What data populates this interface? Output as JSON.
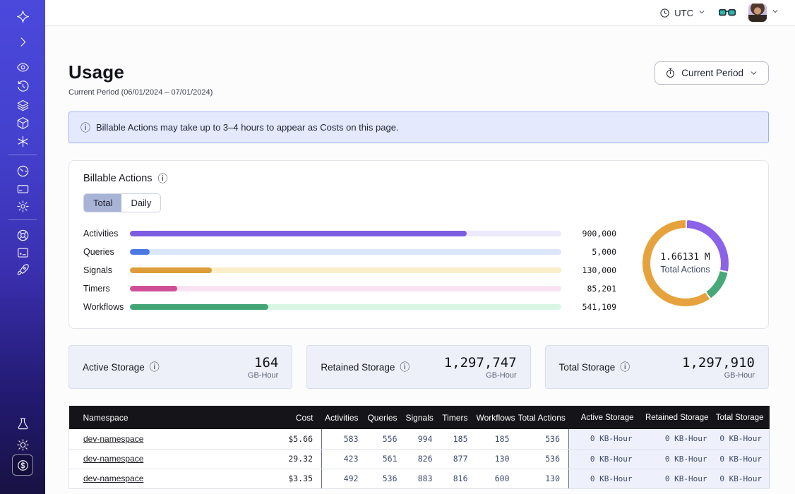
{
  "topbar": {
    "timezone_label": "UTC"
  },
  "icons": {
    "info_glyph": "ⓘ"
  },
  "sidebar": {
    "icons": [
      "temporal-logo",
      "chevron-right-icon",
      "eye-icon",
      "history-clock-icon",
      "layers-icon",
      "cube-icon",
      "asterisk-icon",
      "gauge-icon",
      "credit-card-icon",
      "gear-icon",
      "lifebuoy-icon",
      "book-icon",
      "rocket-icon",
      "flask-icon",
      "sun-icon",
      "dollar-coin-icon"
    ]
  },
  "page": {
    "title": "Usage",
    "subtitle": "Current Period (06/01/2024 – 07/01/2024)",
    "period_button_label": "Current Period"
  },
  "banner": {
    "text": "Billable Actions may take up to 3–4 hours to appear as Costs on this page."
  },
  "billable": {
    "title": "Billable Actions",
    "tabs": [
      {
        "label": "Total",
        "active": true
      },
      {
        "label": "Daily",
        "active": false
      }
    ],
    "chart_data": [
      {
        "type": "bar",
        "orientation": "horizontal",
        "title": "Billable Actions",
        "categories": [
          "Activities",
          "Queries",
          "Signals",
          "Timers",
          "Workflows"
        ],
        "values": [
          900000,
          5000,
          130000,
          85201,
          541109
        ],
        "value_labels": [
          "900,000",
          "5,000",
          "130,000",
          "85,201",
          "541,109"
        ],
        "bar_colors": [
          "#7c5ce0",
          "#4b79e4",
          "#dd9d38",
          "#cf4f97",
          "#43a476"
        ],
        "track_colors": [
          "#ece9fb",
          "#dbe6fa",
          "#faeecb",
          "#f9e3f3",
          "#d9f6e5"
        ],
        "display_fill_pct": [
          78,
          4.6,
          19,
          11,
          32
        ],
        "xlim": [
          0,
          900000
        ],
        "grid": false,
        "legend": "none"
      },
      {
        "type": "pie",
        "subtype": "donut",
        "center_value": "1.66131 M",
        "center_label": "Total Actions",
        "segments": [
          {
            "name": "activities",
            "color": "#8a63e8",
            "pct": 28
          },
          {
            "name": "workflows",
            "color": "#47a878",
            "pct": 12
          },
          {
            "name": "signals",
            "color": "#e6a23c",
            "pct": 60
          }
        ]
      }
    ]
  },
  "storage_cards": [
    {
      "label": "Active Storage",
      "value": "164",
      "unit": "GB-Hour"
    },
    {
      "label": "Retained Storage",
      "value": "1,297,747",
      "unit": "GB-Hour"
    },
    {
      "label": "Total Storage",
      "value": "1,297,910",
      "unit": "GB-Hour"
    }
  ],
  "table": {
    "columns": [
      "Namespace",
      "Cost",
      "Activities",
      "Queries",
      "Signals",
      "Timers",
      "Workflows",
      "Total Actions",
      "Active Storage",
      "Retained Storage",
      "Total Storage"
    ],
    "rows": [
      [
        "dev-namespace",
        "$5.66",
        "583",
        "556",
        "994",
        "185",
        "185",
        "536",
        "0 KB-Hour",
        "0 KB-Hour",
        "0 KB-Hour"
      ],
      [
        "dev-namespace",
        "29.32",
        "423",
        "561",
        "826",
        "877",
        "130",
        "536",
        "0 KB-Hour",
        "0 KB-Hour",
        "0 KB-Hour"
      ],
      [
        "dev-namespace",
        "$3.35",
        "492",
        "536",
        "883",
        "816",
        "600",
        "130",
        "0 KB-Hour",
        "0 KB-Hour",
        "0 KB-Hour"
      ]
    ]
  }
}
